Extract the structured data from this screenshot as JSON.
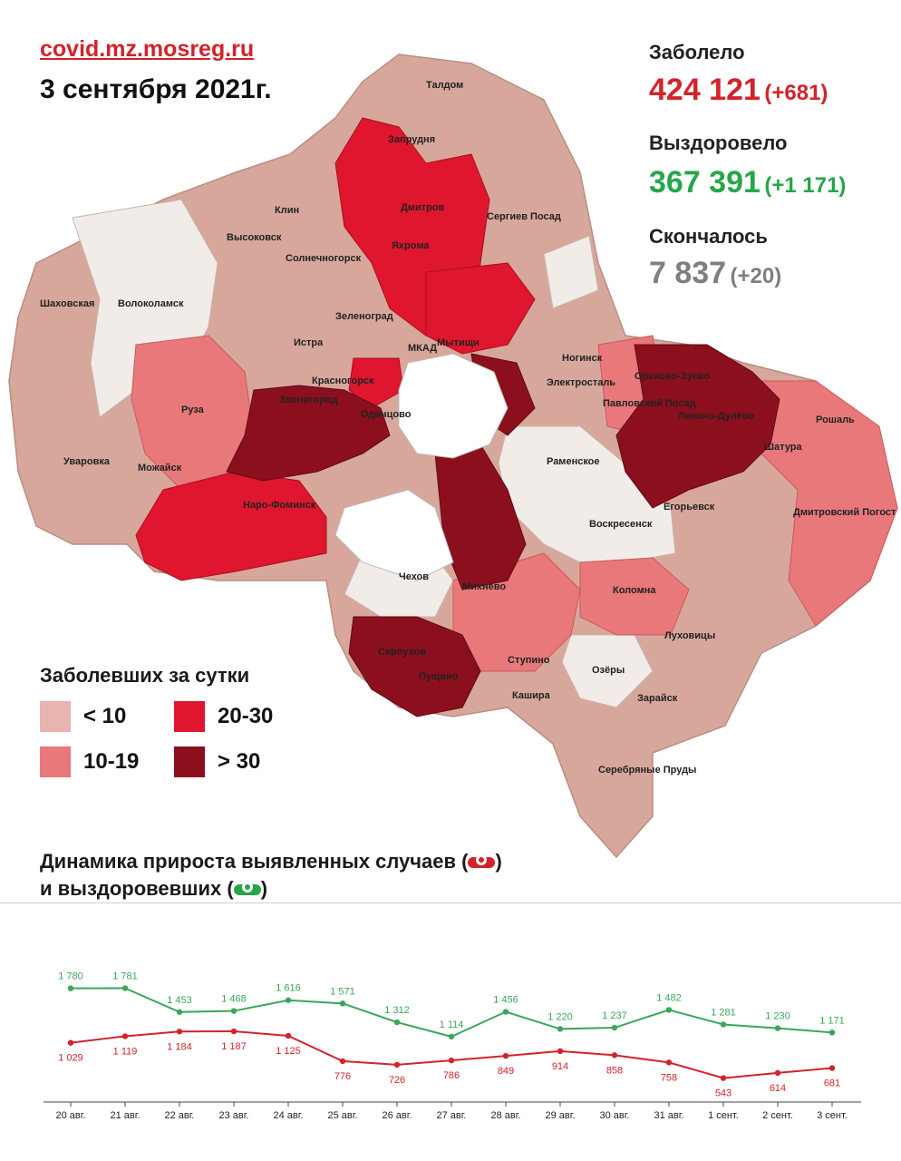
{
  "header": {
    "site": "covid.mz.mosreg.ru",
    "date": "3 сентября 2021г."
  },
  "stats": {
    "infected": {
      "label": "Заболело",
      "value": "424 121",
      "delta": "(+681)",
      "color": "#d3232a"
    },
    "recovered": {
      "label": "Выздоровело",
      "value": "367 391",
      "delta": "(+1 171)",
      "color": "#26a64a"
    },
    "deceased": {
      "label": "Скончалось",
      "value": "7 837",
      "delta": "(+20)",
      "color": "#7f7f7f"
    }
  },
  "map_legend": {
    "title": "Заболевших за сутки",
    "items": [
      {
        "label": "< 10",
        "color": "#e8b4b0"
      },
      {
        "label": "10-19",
        "color": "#e8787a"
      },
      {
        "label": "20-30",
        "color": "#e0152e"
      },
      {
        "label": "> 30",
        "color": "#8c0f1e"
      }
    ]
  },
  "map_labels": [
    "Талдом",
    "Запрудня",
    "Дмитров",
    "Яхрома",
    "Клин",
    "Сергиев Посад",
    "Высоковск",
    "Солнечногорск",
    "Шаховская",
    "Волоколамск",
    "Зеленоград",
    "Истра",
    "Мытищи",
    "Ногинск",
    "Красногорск",
    "Электросталь",
    "Орехово-Зуево",
    "Павловский Посад",
    "Ликино-Дулёво",
    "Рошаль",
    "Звенигород",
    "Одинцово",
    "Руза",
    "Шатура",
    "Уваровка",
    "Можайск",
    "Раменское",
    "Егорьевск",
    "Наро-Фоминск",
    "Воскресенск",
    "Дмитровский Погост",
    "Чехов",
    "Михнево",
    "Коломна",
    "Серпухов",
    "Пущино",
    "Ступино",
    "Озёры",
    "Луховицы",
    "Кашира",
    "Зарайск",
    "Серебряные Пруды",
    "МКАД"
  ],
  "chart_title": {
    "line1_prefix": "Динамика прироста выявленных случаев (",
    "line1_suffix": ")",
    "line2_prefix": "и выздоровевших (",
    "line2_suffix": ")"
  },
  "chart_data": {
    "type": "line",
    "categories": [
      "20 авг.",
      "21 авг.",
      "22 авг.",
      "23 авг.",
      "24 авг.",
      "25 авг.",
      "26 авг.",
      "27 авг.",
      "28 авг.",
      "29 авг.",
      "30 авг.",
      "31 авг.",
      "1 сент.",
      "2 сент.",
      "3 сент."
    ],
    "series": [
      {
        "key": "recovered",
        "color": "#3aa65a",
        "values": [
          1780,
          1781,
          1453,
          1468,
          1616,
          1571,
          1312,
          1114,
          1456,
          1220,
          1237,
          1482,
          1281,
          1230,
          1171
        ],
        "labels": [
          "1 780",
          "1 781",
          "1 453",
          "1 468",
          "1 616",
          "1 571",
          "1 312",
          "1 114",
          "1 456",
          "1 220",
          "1 237",
          "1 482",
          "1 281",
          "1 230",
          "1 171"
        ]
      },
      {
        "key": "infected",
        "color": "#d3232a",
        "values": [
          1029,
          1119,
          1184,
          1187,
          1125,
          776,
          726,
          786,
          849,
          914,
          858,
          758,
          543,
          614,
          681
        ],
        "labels": [
          "1 029",
          "1 119",
          "1 184",
          "1 187",
          "1 125",
          "776",
          "726",
          "786",
          "849",
          "914",
          "858",
          "758",
          "543",
          "614",
          "681"
        ]
      }
    ],
    "xlabel": "",
    "ylabel": "",
    "grid": false
  }
}
